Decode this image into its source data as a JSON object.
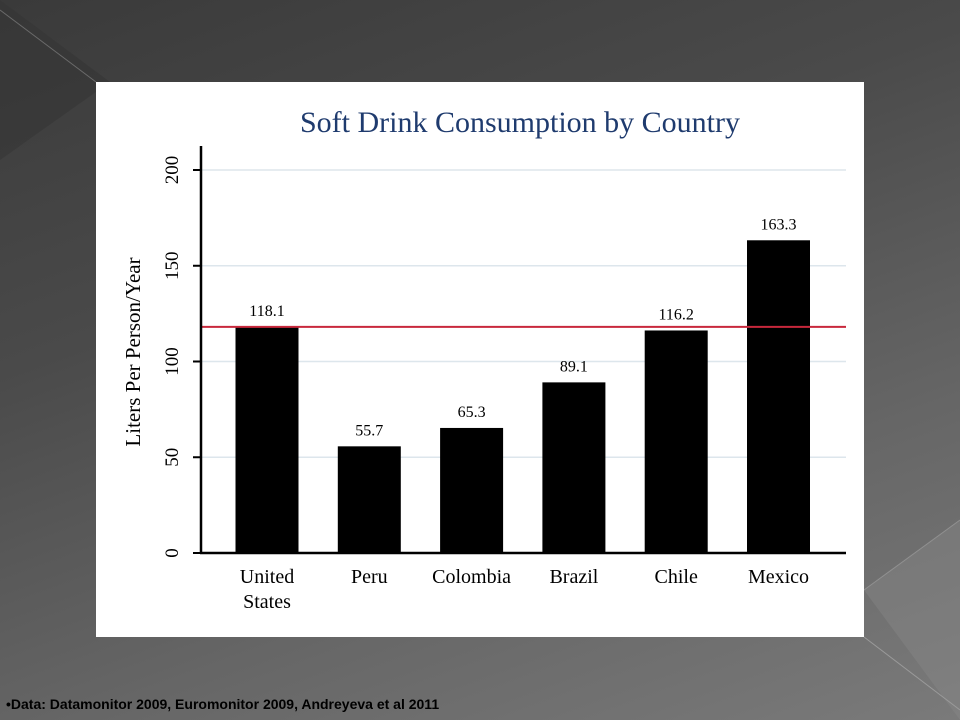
{
  "chart_data": {
    "type": "bar",
    "title": "Soft Drink Consumption by Country",
    "xlabel": "",
    "ylabel": "Liters Per Person/Year",
    "categories": [
      [
        "United",
        "States"
      ],
      [
        "Peru"
      ],
      [
        "Colombia"
      ],
      [
        "Brazil"
      ],
      [
        "Chile"
      ],
      [
        "Mexico"
      ]
    ],
    "values": [
      118.1,
      55.7,
      65.3,
      89.1,
      116.2,
      163.3
    ],
    "value_labels": [
      "118.1",
      "55.7",
      "65.3",
      "89.1",
      "116.2",
      "163.3"
    ],
    "ylim": [
      0,
      200
    ],
    "yticks": [
      0,
      50,
      100,
      150,
      200
    ],
    "reference_line": {
      "value": 118.1,
      "color": "#c8283c"
    },
    "bar_color": "#000000",
    "grid": true,
    "grid_color": "#dde6ec",
    "legend": "none"
  },
  "footnote": "•Data: Datamonitor 2009, Euromonitor 2009, Andreyeva et al 2011"
}
